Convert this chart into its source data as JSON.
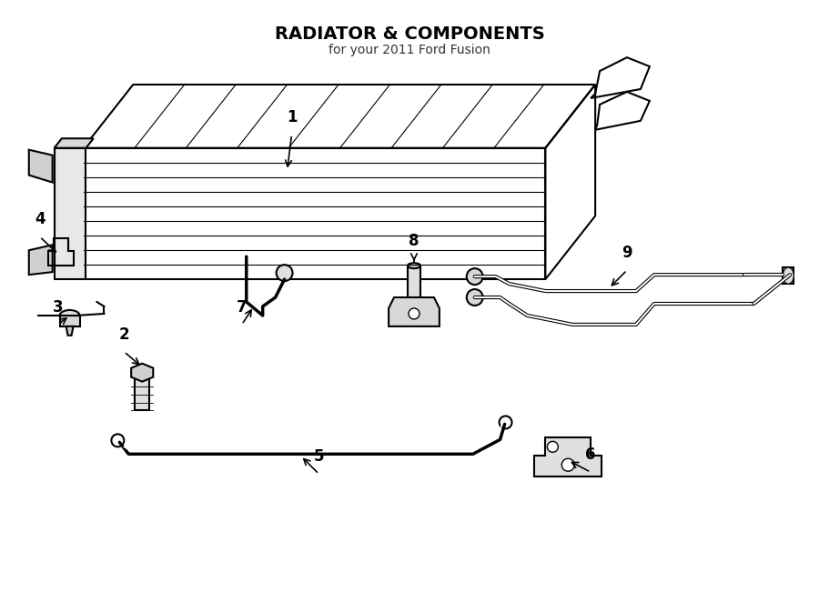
{
  "title": "RADIATOR & COMPONENTS",
  "subtitle": "for your 2011 Ford Fusion",
  "background_color": "#ffffff",
  "line_color": "#000000",
  "figure_width": 9.0,
  "figure_height": 6.62,
  "dpi": 100
}
